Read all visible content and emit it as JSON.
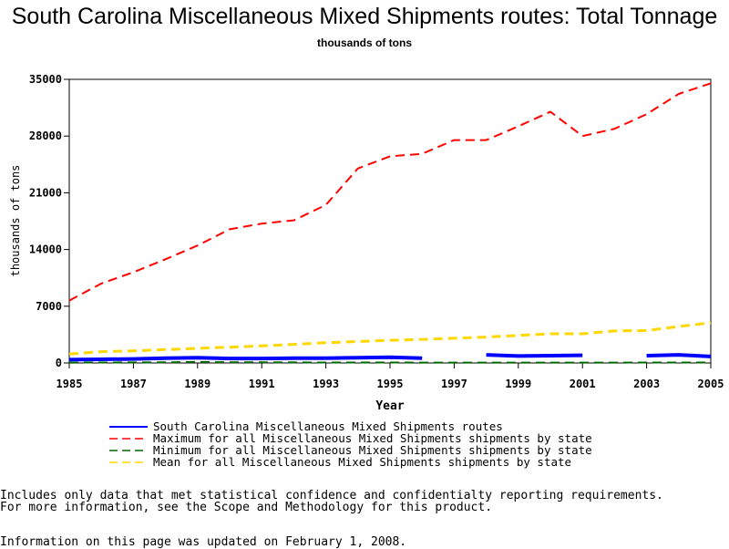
{
  "title": "South Carolina Miscellaneous Mixed Shipments routes: Total Tonnage",
  "subtitle": "thousands of tons",
  "notes": [
    "Includes only data that met statistical confidence and confidentialty reporting requirements.",
    "For more information, see the Scope and Methodology for this product."
  ],
  "updated": "Information on this page was updated on February 1, 2008.",
  "chart_data": {
    "type": "line",
    "title": "South Carolina Miscellaneous Mixed Shipments routes: Total Tonnage",
    "subtitle": "thousands of tons",
    "xlabel": "Year",
    "ylabel": "thousands of tons",
    "xlim": [
      1985,
      2005
    ],
    "ylim": [
      0,
      35000
    ],
    "xticks": [
      1985,
      1987,
      1989,
      1991,
      1993,
      1995,
      1997,
      1999,
      2001,
      2003,
      2005
    ],
    "yticks": [
      0,
      7000,
      14000,
      21000,
      28000,
      35000
    ],
    "grid": false,
    "legend": "bottom",
    "series": [
      {
        "name": "South Carolina Miscellaneous Mixed Shipments routes",
        "color": "#0000ff",
        "dash": "solid",
        "segments": [
          [
            [
              1985,
              400
            ],
            [
              1986,
              450
            ],
            [
              1987,
              500
            ],
            [
              1988,
              600
            ],
            [
              1989,
              650
            ],
            [
              1990,
              550
            ],
            [
              1991,
              550
            ],
            [
              1992,
              580
            ],
            [
              1993,
              600
            ],
            [
              1994,
              650
            ],
            [
              1995,
              700
            ],
            [
              1996,
              600
            ]
          ],
          [
            [
              1998,
              1000
            ],
            [
              1999,
              850
            ],
            [
              2000,
              900
            ],
            [
              2001,
              950
            ]
          ],
          [
            [
              2003,
              900
            ],
            [
              2004,
              1000
            ],
            [
              2005,
              800
            ]
          ]
        ]
      },
      {
        "name": "Maximum for all Miscellaneous Mixed Shipments shipments by state",
        "color": "#ff0000",
        "dash": "dashed",
        "segments": [
          [
            [
              1985,
              7700
            ],
            [
              1986,
              9800
            ],
            [
              1987,
              11200
            ],
            [
              1988,
              12800
            ],
            [
              1989,
              14500
            ],
            [
              1990,
              16500
            ],
            [
              1991,
              17200
            ],
            [
              1992,
              17600
            ],
            [
              1993,
              19500
            ],
            [
              1994,
              24000
            ],
            [
              1995,
              25500
            ],
            [
              1996,
              25800
            ],
            [
              1997,
              27500
            ],
            [
              1998,
              27500
            ],
            [
              1999,
              29200
            ],
            [
              2000,
              31000
            ],
            [
              2001,
              28000
            ],
            [
              2002,
              28900
            ],
            [
              2003,
              30700
            ],
            [
              2004,
              33200
            ],
            [
              2005,
              34500
            ]
          ]
        ]
      },
      {
        "name": "Minimum for all Miscellaneous Mixed Shipments shipments by state",
        "color": "#006400",
        "dash": "dashed",
        "segments": [
          [
            [
              1985,
              50
            ],
            [
              1986,
              60
            ],
            [
              1987,
              70
            ],
            [
              1988,
              80
            ],
            [
              1989,
              120
            ],
            [
              1990,
              90
            ],
            [
              1991,
              80
            ],
            [
              1992,
              70
            ],
            [
              1993,
              60
            ],
            [
              1994,
              60
            ],
            [
              1995,
              60
            ],
            [
              1996,
              50
            ],
            [
              1997,
              50
            ],
            [
              1998,
              50
            ],
            [
              1999,
              50
            ],
            [
              2000,
              50
            ],
            [
              2001,
              50
            ],
            [
              2002,
              50
            ],
            [
              2003,
              60
            ],
            [
              2004,
              60
            ],
            [
              2005,
              60
            ]
          ]
        ]
      },
      {
        "name": "Mean for all Miscellaneous Mixed Shipments shipments by state",
        "color": "#ffd700",
        "dash": "dashed",
        "segments": [
          [
            [
              1985,
              1100
            ],
            [
              1986,
              1400
            ],
            [
              1987,
              1500
            ],
            [
              1988,
              1650
            ],
            [
              1989,
              1800
            ],
            [
              1990,
              1950
            ],
            [
              1991,
              2100
            ],
            [
              1992,
              2300
            ],
            [
              1993,
              2500
            ],
            [
              1994,
              2650
            ],
            [
              1995,
              2800
            ],
            [
              1996,
              2900
            ],
            [
              1997,
              3050
            ],
            [
              1998,
              3200
            ],
            [
              1999,
              3400
            ],
            [
              2000,
              3600
            ],
            [
              2001,
              3600
            ],
            [
              2002,
              3950
            ],
            [
              2003,
              4000
            ],
            [
              2004,
              4500
            ],
            [
              2005,
              4950
            ]
          ]
        ]
      }
    ]
  }
}
